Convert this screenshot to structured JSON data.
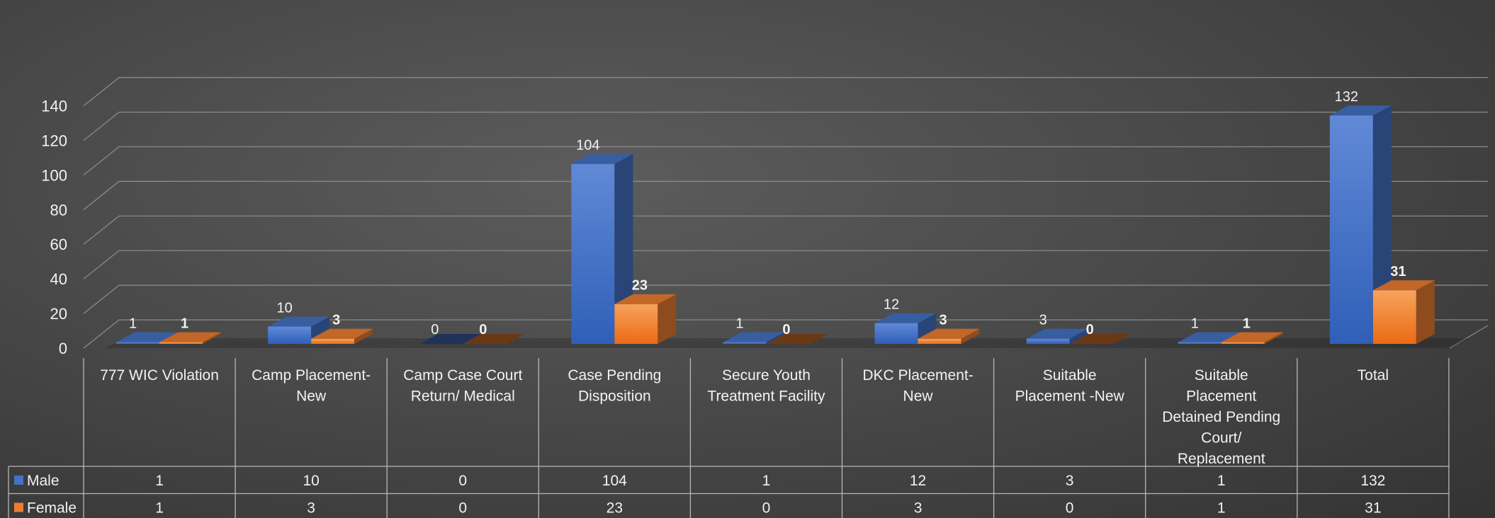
{
  "chart_data": {
    "type": "bar",
    "three_d": true,
    "ylim": [
      0,
      140
    ],
    "ytick_values": [
      0,
      20,
      40,
      60,
      80,
      100,
      120,
      140
    ],
    "grid": true,
    "legend": "data-table",
    "categories": [
      [
        "777 WIC Violation"
      ],
      [
        "Camp Placement-",
        "New"
      ],
      [
        "Camp Case Court",
        "Return/    Medical"
      ],
      [
        "Case Pending",
        "Disposition"
      ],
      [
        "Secure Youth",
        "Treatment Facility"
      ],
      [
        "DKC Placement-",
        "New"
      ],
      [
        "Suitable",
        "Placement -New"
      ],
      [
        "Suitable",
        "Placement",
        "Detained Pending",
        "Court/",
        "Replacement"
      ],
      [
        "Total"
      ]
    ],
    "series": [
      {
        "name": "Male",
        "color": "#4472C4",
        "values": [
          1,
          10,
          0,
          104,
          1,
          12,
          3,
          1,
          132
        ]
      },
      {
        "name": "Female",
        "color": "#ED7D31",
        "values": [
          1,
          3,
          0,
          23,
          0,
          3,
          0,
          1,
          31
        ]
      }
    ]
  }
}
